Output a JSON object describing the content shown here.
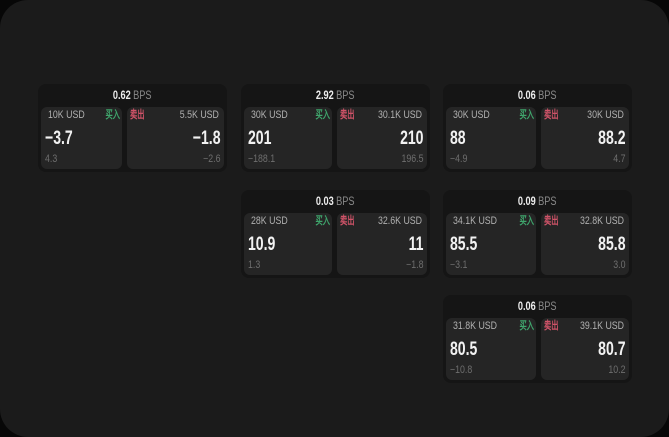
{
  "bps_unit": "BPS",
  "buy_label": "买入",
  "sell_label": "卖出",
  "colors": {
    "buy": "#3fa56c",
    "sell": "#cf5368"
  },
  "cards": [
    {
      "bps": "0.62",
      "col": 0,
      "row": 0,
      "buy": {
        "amount": "10K USD",
        "value": "−3.7",
        "sub": "4.3"
      },
      "sell": {
        "amount": "5.5K USD",
        "value": "−1.8",
        "sub": "−2.6"
      }
    },
    {
      "bps": "2.92",
      "col": 1,
      "row": 0,
      "buy": {
        "amount": "30K USD",
        "value": "201",
        "sub": "−188.1"
      },
      "sell": {
        "amount": "30.1K USD",
        "value": "210",
        "sub": "196.5"
      }
    },
    {
      "bps": "0.06",
      "col": 2,
      "row": 0,
      "buy": {
        "amount": "30K USD",
        "value": "88",
        "sub": "−4.9"
      },
      "sell": {
        "amount": "30K USD",
        "value": "88.2",
        "sub": "4.7"
      }
    },
    {
      "bps": "0.03",
      "col": 1,
      "row": 1,
      "buy": {
        "amount": "28K USD",
        "value": "10.9",
        "sub": "1.3"
      },
      "sell": {
        "amount": "32.6K USD",
        "value": "11",
        "sub": "−1.8"
      }
    },
    {
      "bps": "0.09",
      "col": 2,
      "row": 1,
      "buy": {
        "amount": "34.1K USD",
        "value": "85.5",
        "sub": "−3.1"
      },
      "sell": {
        "amount": "32.8K USD",
        "value": "85.8",
        "sub": "3.0"
      }
    },
    {
      "bps": "0.06",
      "col": 2,
      "row": 2,
      "buy": {
        "amount": "31.8K USD",
        "value": "80.5",
        "sub": "−10.8"
      },
      "sell": {
        "amount": "39.1K USD",
        "value": "80.7",
        "sub": "10.2"
      }
    }
  ]
}
